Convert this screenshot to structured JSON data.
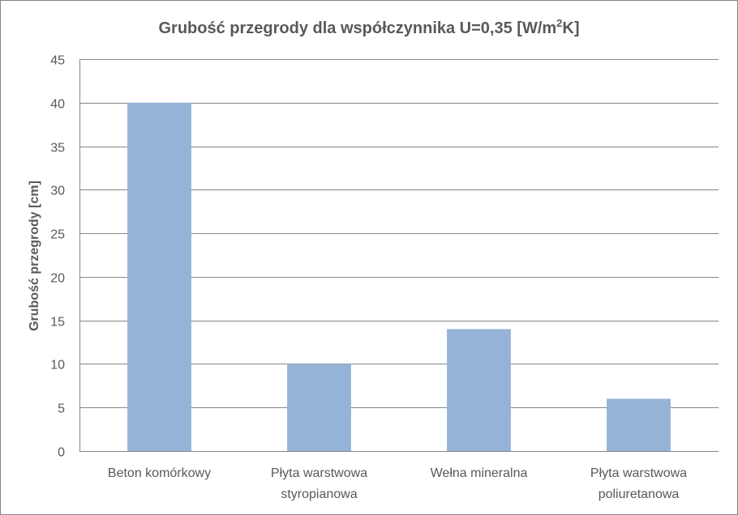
{
  "chart_data": {
    "type": "bar",
    "title_main": "Grubość przegrody dla współczynnika U=0,35 [W/m",
    "title_sup": "2",
    "title_end": "K]",
    "ylabel": "Grubość przegrody [cm]",
    "xlabel": "",
    "ylim": [
      0,
      45
    ],
    "yticks": [
      "0",
      "5",
      "10",
      "15",
      "20",
      "25",
      "30",
      "35",
      "40",
      "45"
    ],
    "grid": true,
    "legend": "none",
    "bar_color": "#95b3d7",
    "categories": [
      [
        "Beton komórkowy"
      ],
      [
        "Płyta warstwowa",
        "styropianowa"
      ],
      [
        "Wełna mineralna"
      ],
      [
        "Płyta warstwowa",
        "poliuretanowa"
      ]
    ],
    "values": [
      40,
      10,
      14,
      6
    ]
  }
}
